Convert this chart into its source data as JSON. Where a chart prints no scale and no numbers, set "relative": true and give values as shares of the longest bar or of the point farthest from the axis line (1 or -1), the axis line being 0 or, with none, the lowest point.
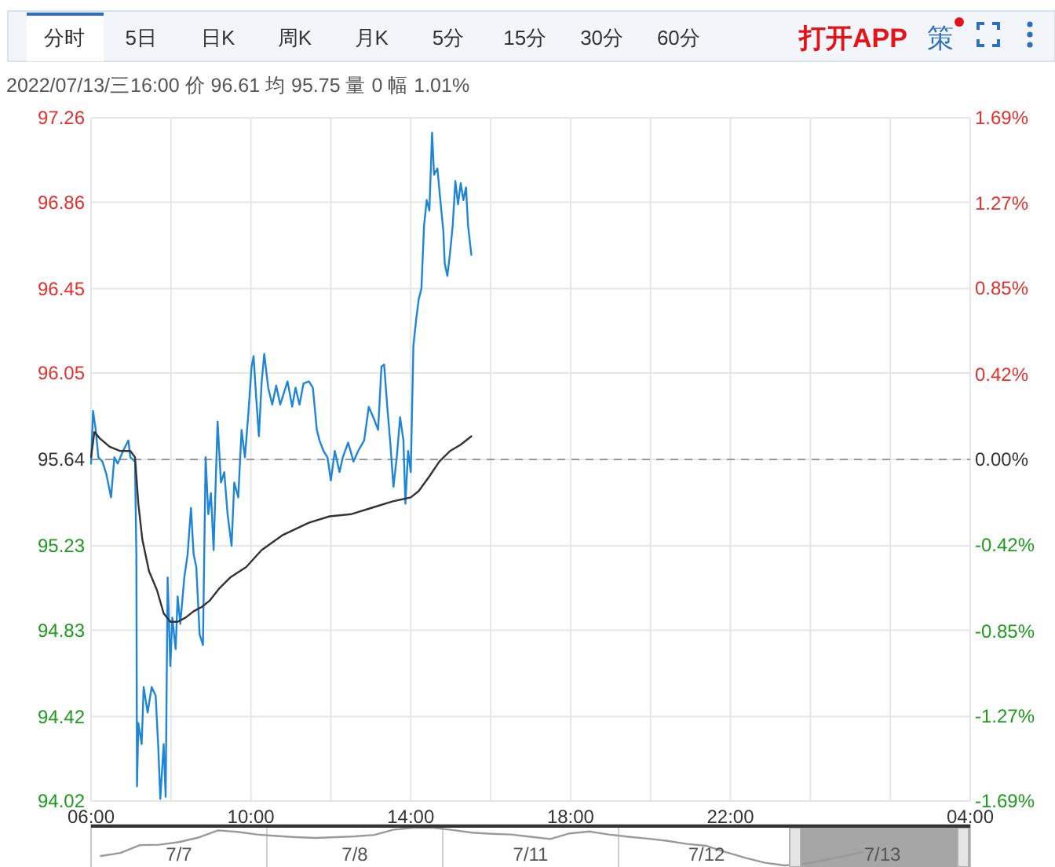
{
  "chart_data": [
    {
      "type": "line",
      "subtitle": "2022/07/13/三16:00 价 96.61 均 95.75 量 0 幅 1.01%",
      "annotations": [
        "分时",
        "5日",
        "日K",
        "周K",
        "月K",
        "5分",
        "15分",
        "30分",
        "60分",
        "打开APP",
        "策"
      ],
      "xlim": [
        "2022-07-13T06:00",
        "2022-07-14T04:00"
      ],
      "xticks": [
        {
          "value": "2022-07-13T06:00",
          "label": "06:00"
        },
        {
          "value": "2022-07-13T08:00",
          "label": null
        },
        {
          "value": "2022-07-13T10:00",
          "label": "10:00"
        },
        {
          "value": "2022-07-13T12:00",
          "label": null
        },
        {
          "value": "2022-07-13T14:00",
          "label": "14:00"
        },
        {
          "value": "2022-07-13T16:00",
          "label": null
        },
        {
          "value": "2022-07-13T18:00",
          "label": "18:00"
        },
        {
          "value": "2022-07-13T20:00",
          "label": null
        },
        {
          "value": "2022-07-13T22:00",
          "label": "22:00"
        },
        {
          "value": "2022-07-14T00:00",
          "label": null
        },
        {
          "value": "2022-07-14T02:00",
          "label": null
        },
        {
          "value": "2022-07-14T04:00",
          "label": "04:00"
        }
      ],
      "ylim": [
        94.02,
        97.26
      ],
      "yticks": [
        94.02,
        94.42,
        94.83,
        95.23,
        95.64,
        96.05,
        96.45,
        96.86,
        97.26
      ],
      "y2lim": [
        -1.69,
        1.69
      ],
      "y2ticks": [
        {
          "value": -1.69,
          "label": "-1.69%"
        },
        {
          "value": -1.27,
          "label": "-1.27%"
        },
        {
          "value": -0.85,
          "label": "-0.85%"
        },
        {
          "value": -0.42,
          "label": "-0.42%"
        },
        {
          "value": 0,
          "label": "0.00%"
        },
        {
          "value": 0.42,
          "label": "0.42%"
        },
        {
          "value": 0.85,
          "label": "0.85%"
        },
        {
          "value": 1.27,
          "label": "1.27%"
        },
        {
          "value": 1.69,
          "label": "1.69%"
        }
      ],
      "grid": true,
      "ref_lines": [
        {
          "axis": "y",
          "value": 95.64,
          "color": "#999999",
          "line_style": "dashed"
        }
      ],
      "series": [
        {
          "color": "#1f86d6",
          "x": [
            "2022-07-13T06:00",
            "2022-07-13T06:03",
            "2022-07-13T06:07",
            "2022-07-13T06:11",
            "2022-07-13T06:17",
            "2022-07-13T06:23",
            "2022-07-13T06:30",
            "2022-07-13T06:35",
            "2022-07-13T06:40",
            "2022-07-13T06:48",
            "2022-07-13T06:56",
            "2022-07-13T06:59",
            "2022-07-13T07:06",
            "2022-07-13T07:08",
            "2022-07-13T07:09",
            "2022-07-13T07:11",
            "2022-07-13T07:16",
            "2022-07-13T07:19",
            "2022-07-13T07:25",
            "2022-07-13T07:31",
            "2022-07-13T07:37",
            "2022-07-13T07:41",
            "2022-07-13T07:44",
            "2022-07-13T07:49",
            "2022-07-13T07:52",
            "2022-07-13T07:55",
            "2022-07-13T07:59",
            "2022-07-13T08:02",
            "2022-07-13T08:07",
            "2022-07-13T08:10",
            "2022-07-13T08:14",
            "2022-07-13T08:20",
            "2022-07-13T08:25",
            "2022-07-13T08:30",
            "2022-07-13T08:34",
            "2022-07-13T08:38",
            "2022-07-13T08:43",
            "2022-07-13T08:48",
            "2022-07-13T08:52",
            "2022-07-13T08:56",
            "2022-07-13T09:00",
            "2022-07-13T09:04",
            "2022-07-13T09:10",
            "2022-07-13T09:15",
            "2022-07-13T09:20",
            "2022-07-13T09:25",
            "2022-07-13T09:31",
            "2022-07-13T09:35",
            "2022-07-13T09:41",
            "2022-07-13T09:46",
            "2022-07-13T09:51",
            "2022-07-13T09:56",
            "2022-07-13T10:01",
            "2022-07-13T10:04",
            "2022-07-13T10:08",
            "2022-07-13T10:12",
            "2022-07-13T10:16",
            "2022-07-13T10:20",
            "2022-07-13T10:26",
            "2022-07-13T10:32",
            "2022-07-13T10:38",
            "2022-07-13T10:44",
            "2022-07-13T10:47",
            "2022-07-13T10:55",
            "2022-07-13T11:02",
            "2022-07-13T11:07",
            "2022-07-13T11:13",
            "2022-07-13T11:19",
            "2022-07-13T11:27",
            "2022-07-13T11:33",
            "2022-07-13T11:39",
            "2022-07-13T11:43",
            "2022-07-13T11:49",
            "2022-07-13T11:55",
            "2022-07-13T12:00",
            "2022-07-13T12:06",
            "2022-07-13T12:13",
            "2022-07-13T12:18",
            "2022-07-13T12:26",
            "2022-07-13T12:34",
            "2022-07-13T12:41",
            "2022-07-13T12:50",
            "2022-07-13T12:57",
            "2022-07-13T13:05",
            "2022-07-13T13:11",
            "2022-07-13T13:16",
            "2022-07-13T13:20",
            "2022-07-13T13:25",
            "2022-07-13T13:29",
            "2022-07-13T13:34",
            "2022-07-13T13:39",
            "2022-07-13T13:44",
            "2022-07-13T13:49",
            "2022-07-13T13:52",
            "2022-07-13T13:56",
            "2022-07-13T14:00",
            "2022-07-13T14:04",
            "2022-07-13T14:08",
            "2022-07-13T14:12",
            "2022-07-13T14:16",
            "2022-07-13T14:20",
            "2022-07-13T14:24",
            "2022-07-13T14:28",
            "2022-07-13T14:32",
            "2022-07-13T14:35",
            "2022-07-13T14:40",
            "2022-07-13T14:45",
            "2022-07-13T14:49",
            "2022-07-13T14:51",
            "2022-07-13T14:55",
            "2022-07-13T14:59",
            "2022-07-13T15:03",
            "2022-07-13T15:07",
            "2022-07-13T15:11",
            "2022-07-13T15:15",
            "2022-07-13T15:19",
            "2022-07-13T15:23",
            "2022-07-13T15:26",
            "2022-07-13T15:31"
          ],
          "values": [
            95.62,
            95.87,
            95.78,
            95.65,
            95.63,
            95.57,
            95.46,
            95.65,
            95.62,
            95.68,
            95.73,
            95.65,
            95.63,
            95.19,
            94.09,
            94.39,
            94.29,
            94.56,
            94.44,
            94.56,
            94.52,
            94.27,
            94.03,
            94.29,
            94.04,
            95.08,
            94.66,
            94.89,
            94.74,
            94.99,
            94.86,
            95.08,
            95.19,
            95.41,
            95.19,
            95.13,
            94.81,
            94.76,
            95.65,
            95.38,
            95.48,
            95.21,
            95.82,
            95.53,
            95.58,
            95.38,
            95.23,
            95.53,
            95.46,
            95.78,
            95.65,
            95.85,
            96.08,
            96.13,
            95.93,
            95.75,
            96.0,
            96.14,
            95.98,
            95.9,
            95.99,
            95.9,
            95.93,
            96.01,
            95.89,
            95.98,
            95.9,
            96.0,
            96.01,
            95.98,
            95.78,
            95.73,
            95.68,
            95.65,
            95.54,
            95.68,
            95.58,
            95.65,
            95.72,
            95.63,
            95.68,
            95.73,
            95.89,
            95.83,
            95.78,
            96.08,
            96.09,
            95.88,
            95.73,
            95.51,
            95.65,
            95.84,
            95.73,
            95.43,
            95.68,
            95.58,
            96.18,
            96.3,
            96.4,
            96.45,
            96.75,
            96.87,
            96.82,
            97.19,
            96.99,
            97.02,
            96.85,
            96.72,
            96.57,
            96.51,
            96.62,
            96.75,
            96.96,
            96.85,
            96.95,
            96.87,
            96.93,
            96.75,
            96.61
          ]
        },
        {
          "color": "#333333",
          "x": [
            "2022-07-13T06:00",
            "2022-07-13T06:05",
            "2022-07-13T06:13",
            "2022-07-13T06:28",
            "2022-07-13T06:44",
            "2022-07-13T06:59",
            "2022-07-13T07:06",
            "2022-07-13T07:11",
            "2022-07-13T07:17",
            "2022-07-13T07:27",
            "2022-07-13T07:39",
            "2022-07-13T07:49",
            "2022-07-13T07:59",
            "2022-07-13T08:10",
            "2022-07-13T08:22",
            "2022-07-13T08:34",
            "2022-07-13T08:46",
            "2022-07-13T08:58",
            "2022-07-13T09:13",
            "2022-07-13T09:29",
            "2022-07-13T09:53",
            "2022-07-13T10:16",
            "2022-07-13T10:47",
            "2022-07-13T11:27",
            "2022-07-13T11:58",
            "2022-07-13T12:30",
            "2022-07-13T13:01",
            "2022-07-13T13:32",
            "2022-07-13T14:00",
            "2022-07-13T14:12",
            "2022-07-13T14:28",
            "2022-07-13T14:43",
            "2022-07-13T14:59",
            "2022-07-13T15:15",
            "2022-07-13T15:31"
          ],
          "values": [
            95.65,
            95.77,
            95.74,
            95.7,
            95.68,
            95.68,
            95.65,
            95.43,
            95.26,
            95.11,
            95.02,
            94.91,
            94.87,
            94.87,
            94.89,
            94.92,
            94.94,
            94.97,
            95.03,
            95.08,
            95.13,
            95.21,
            95.28,
            95.34,
            95.37,
            95.38,
            95.41,
            95.44,
            95.46,
            95.49,
            95.56,
            95.63,
            95.68,
            95.71,
            95.75
          ]
        }
      ]
    },
    {
      "type": "line",
      "relative": true,
      "categories": [
        null,
        null,
        null,
        null,
        "7/7",
        null,
        null,
        null,
        null,
        null,
        null,
        null,
        null,
        "7/8",
        null,
        null,
        null,
        null,
        null,
        null,
        null,
        null,
        "7/11",
        null,
        null,
        null,
        null,
        null,
        null,
        null,
        null,
        "7/12",
        null,
        null,
        null,
        null,
        null,
        null,
        null,
        null,
        "7/13",
        null,
        null,
        null,
        null
      ],
      "series": [
        {
          "color": "#9a9a9a",
          "values": [
            0.25,
            0.33,
            0.54,
            0.55,
            0.62,
            0.74,
            0.93,
            0.89,
            0.82,
            0.78,
            0.75,
            0.73,
            0.75,
            0.77,
            0.81,
            0.95,
            1,
            1,
            0.94,
            0.87,
            0.84,
            0.82,
            0.76,
            0.7,
            0.85,
            0.9,
            0.82,
            0.76,
            0.71,
            0.65,
            0.57,
            0.52,
            0.35,
            0.2,
            0.07,
            0,
            0.04,
            0.14,
            0.24,
            0.36,
            null,
            null,
            null,
            null,
            null
          ]
        }
      ]
    }
  ]
}
